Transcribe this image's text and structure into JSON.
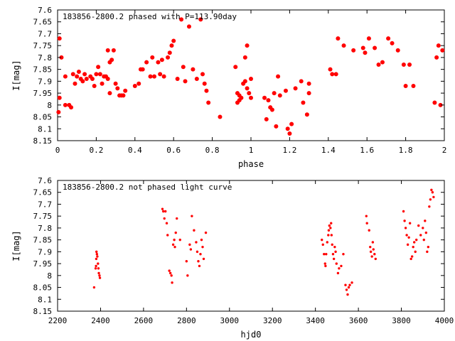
{
  "chart_data": [
    {
      "type": "scatter",
      "title": "183856-2800.2 phased with P=113.90day",
      "xlabel": "phase",
      "ylabel": "I[mag]",
      "xlim": [
        0,
        2
      ],
      "ylim": [
        8.15,
        7.6
      ],
      "y_inverted": true,
      "grid": false,
      "marker": "filled-circle",
      "color": "#ff0000",
      "x_ticks": [
        "0",
        "0.2",
        "0.4",
        "0.6",
        "0.8",
        "1",
        "1.2",
        "1.4",
        "1.6",
        "1.8",
        "2"
      ],
      "y_ticks": [
        "7.6",
        "7.65",
        "7.7",
        "7.75",
        "7.8",
        "7.85",
        "7.9",
        "7.95",
        "8",
        "8.05",
        "8.1",
        "8.15"
      ],
      "points": [
        [
          0.01,
          7.72
        ],
        [
          0.02,
          7.8
        ],
        [
          0.01,
          7.97
        ],
        [
          0.005,
          8.03
        ],
        [
          0.04,
          7.88
        ],
        [
          0.04,
          8.0
        ],
        [
          0.06,
          8.0
        ],
        [
          0.07,
          8.01
        ],
        [
          0.08,
          7.87
        ],
        [
          0.09,
          7.91
        ],
        [
          0.1,
          7.88
        ],
        [
          0.11,
          7.86
        ],
        [
          0.12,
          7.89
        ],
        [
          0.13,
          7.9
        ],
        [
          0.14,
          7.87
        ],
        [
          0.15,
          7.89
        ],
        [
          0.17,
          7.88
        ],
        [
          0.18,
          7.89
        ],
        [
          0.19,
          7.92
        ],
        [
          0.2,
          7.87
        ],
        [
          0.21,
          7.84
        ],
        [
          0.22,
          7.87
        ],
        [
          0.23,
          7.91
        ],
        [
          0.24,
          7.88
        ],
        [
          0.25,
          7.88
        ],
        [
          0.26,
          7.77
        ],
        [
          0.26,
          7.89
        ],
        [
          0.27,
          7.82
        ],
        [
          0.27,
          7.95
        ],
        [
          0.28,
          7.81
        ],
        [
          0.29,
          7.77
        ],
        [
          0.3,
          7.91
        ],
        [
          0.31,
          7.93
        ],
        [
          0.32,
          7.96
        ],
        [
          0.33,
          7.96
        ],
        [
          0.34,
          7.96
        ],
        [
          0.35,
          7.94
        ],
        [
          0.4,
          7.92
        ],
        [
          0.42,
          7.91
        ],
        [
          0.43,
          7.85
        ],
        [
          0.44,
          7.85
        ],
        [
          0.46,
          7.82
        ],
        [
          0.48,
          7.88
        ],
        [
          0.49,
          7.8
        ],
        [
          0.5,
          7.88
        ],
        [
          0.52,
          7.82
        ],
        [
          0.53,
          7.87
        ],
        [
          0.54,
          7.81
        ],
        [
          0.55,
          7.88
        ],
        [
          0.57,
          7.8
        ],
        [
          0.58,
          7.78
        ],
        [
          0.59,
          7.75
        ],
        [
          0.6,
          7.73
        ],
        [
          0.62,
          7.89
        ],
        [
          0.64,
          7.64
        ],
        [
          0.65,
          7.84
        ],
        [
          0.66,
          7.9
        ],
        [
          0.68,
          7.67
        ],
        [
          0.7,
          7.85
        ],
        [
          0.72,
          7.89
        ],
        [
          0.74,
          7.64
        ],
        [
          0.75,
          7.87
        ],
        [
          0.76,
          7.91
        ],
        [
          0.77,
          7.94
        ],
        [
          0.78,
          7.99
        ],
        [
          0.84,
          8.05
        ],
        [
          0.92,
          7.84
        ],
        [
          0.93,
          7.95
        ],
        [
          0.93,
          7.99
        ],
        [
          0.94,
          7.96
        ],
        [
          0.94,
          7.98
        ],
        [
          0.95,
          7.97
        ],
        [
          0.96,
          7.91
        ],
        [
          0.97,
          7.8
        ],
        [
          0.97,
          7.9
        ],
        [
          0.98,
          7.75
        ],
        [
          0.98,
          7.93
        ],
        [
          0.99,
          7.95
        ],
        [
          1.0,
          7.97
        ],
        [
          1.0,
          7.89
        ],
        [
          1.07,
          7.97
        ],
        [
          1.08,
          8.06
        ],
        [
          1.09,
          7.98
        ],
        [
          1.1,
          8.01
        ],
        [
          1.11,
          8.02
        ],
        [
          1.12,
          7.95
        ],
        [
          1.13,
          8.09
        ],
        [
          1.14,
          7.88
        ],
        [
          1.15,
          7.96
        ],
        [
          1.18,
          7.94
        ],
        [
          1.19,
          8.1
        ],
        [
          1.2,
          8.12
        ],
        [
          1.21,
          8.08
        ],
        [
          1.23,
          7.93
        ],
        [
          1.26,
          7.9
        ],
        [
          1.27,
          7.99
        ],
        [
          1.29,
          8.04
        ],
        [
          1.3,
          7.95
        ],
        [
          1.3,
          7.91
        ],
        [
          1.41,
          7.85
        ],
        [
          1.42,
          7.87
        ],
        [
          1.44,
          7.87
        ],
        [
          1.45,
          7.72
        ],
        [
          1.48,
          7.75
        ],
        [
          1.53,
          7.77
        ],
        [
          1.58,
          7.76
        ],
        [
          1.59,
          7.78
        ],
        [
          1.61,
          7.72
        ],
        [
          1.64,
          7.76
        ],
        [
          1.66,
          7.83
        ],
        [
          1.68,
          7.82
        ],
        [
          1.71,
          7.72
        ],
        [
          1.73,
          7.74
        ],
        [
          1.76,
          7.77
        ],
        [
          1.79,
          7.83
        ],
        [
          1.8,
          7.92
        ],
        [
          1.82,
          7.83
        ],
        [
          1.84,
          7.92
        ],
        [
          1.95,
          7.99
        ],
        [
          1.96,
          7.8
        ],
        [
          1.97,
          7.75
        ],
        [
          1.98,
          8.0
        ],
        [
          1.99,
          7.77
        ]
      ]
    },
    {
      "type": "scatter",
      "title": "183856-2800.2 not phased light curve",
      "xlabel": "hjd0",
      "ylabel": "I[mag]",
      "xlim": [
        2200,
        4000
      ],
      "ylim": [
        8.15,
        7.6
      ],
      "y_inverted": true,
      "grid": false,
      "marker": "small-dot",
      "color": "#ff0000",
      "x_ticks": [
        "2200",
        "2400",
        "2600",
        "2800",
        "3000",
        "3200",
        "3400",
        "3600",
        "3800",
        "4000"
      ],
      "y_ticks": [
        "7.6",
        "7.65",
        "7.7",
        "7.75",
        "7.8",
        "7.85",
        "7.9",
        "7.95",
        "8",
        "8.05",
        "8.1",
        "8.15"
      ],
      "points": [
        [
          2370,
          8.05
        ],
        [
          2377,
          7.97
        ],
        [
          2379,
          7.96
        ],
        [
          2380,
          7.93
        ],
        [
          2381,
          7.9
        ],
        [
          2383,
          7.91
        ],
        [
          2385,
          7.92
        ],
        [
          2388,
          7.95
        ],
        [
          2390,
          7.97
        ],
        [
          2392,
          7.99
        ],
        [
          2395,
          8.0
        ],
        [
          2397,
          8.01
        ],
        [
          2688,
          7.72
        ],
        [
          2692,
          7.73
        ],
        [
          2697,
          7.76
        ],
        [
          2702,
          7.73
        ],
        [
          2708,
          7.78
        ],
        [
          2712,
          7.83
        ],
        [
          2720,
          7.98
        ],
        [
          2725,
          7.99
        ],
        [
          2730,
          8.0
        ],
        [
          2733,
          8.03
        ],
        [
          2738,
          7.87
        ],
        [
          2743,
          7.85
        ],
        [
          2746,
          7.88
        ],
        [
          2750,
          7.82
        ],
        [
          2755,
          7.76
        ],
        [
          2770,
          7.85
        ],
        [
          2800,
          7.94
        ],
        [
          2805,
          8.0
        ],
        [
          2815,
          7.87
        ],
        [
          2820,
          7.89
        ],
        [
          2825,
          7.75
        ],
        [
          2835,
          7.81
        ],
        [
          2845,
          7.86
        ],
        [
          2850,
          7.9
        ],
        [
          2855,
          7.94
        ],
        [
          2860,
          7.96
        ],
        [
          2865,
          7.91
        ],
        [
          2870,
          7.85
        ],
        [
          2875,
          7.88
        ],
        [
          2880,
          7.93
        ],
        [
          2890,
          7.82
        ],
        [
          3430,
          7.85
        ],
        [
          3435,
          7.87
        ],
        [
          3440,
          7.91
        ],
        [
          3445,
          7.95
        ],
        [
          3447,
          7.96
        ],
        [
          3450,
          7.91
        ],
        [
          3455,
          7.86
        ],
        [
          3460,
          7.83
        ],
        [
          3462,
          7.81
        ],
        [
          3465,
          7.79
        ],
        [
          3470,
          7.8
        ],
        [
          3473,
          7.78
        ],
        [
          3475,
          7.83
        ],
        [
          3478,
          7.87
        ],
        [
          3482,
          7.91
        ],
        [
          3486,
          7.93
        ],
        [
          3490,
          7.88
        ],
        [
          3494,
          7.9
        ],
        [
          3498,
          7.95
        ],
        [
          3505,
          7.99
        ],
        [
          3510,
          7.97
        ],
        [
          3520,
          7.96
        ],
        [
          3530,
          7.91
        ],
        [
          3540,
          8.04
        ],
        [
          3545,
          8.06
        ],
        [
          3550,
          8.08
        ],
        [
          3555,
          8.05
        ],
        [
          3560,
          8.04
        ],
        [
          3570,
          8.03
        ],
        [
          3637,
          7.75
        ],
        [
          3640,
          7.78
        ],
        [
          3650,
          7.81
        ],
        [
          3655,
          7.88
        ],
        [
          3658,
          7.9
        ],
        [
          3663,
          7.92
        ],
        [
          3667,
          7.86
        ],
        [
          3670,
          7.89
        ],
        [
          3675,
          7.91
        ],
        [
          3680,
          7.93
        ],
        [
          3810,
          7.73
        ],
        [
          3815,
          7.77
        ],
        [
          3820,
          7.8
        ],
        [
          3825,
          7.83
        ],
        [
          3830,
          7.87
        ],
        [
          3835,
          7.84
        ],
        [
          3840,
          7.78
        ],
        [
          3845,
          7.93
        ],
        [
          3850,
          7.92
        ],
        [
          3855,
          7.88
        ],
        [
          3860,
          7.86
        ],
        [
          3865,
          7.9
        ],
        [
          3870,
          7.85
        ],
        [
          3880,
          7.79
        ],
        [
          3890,
          7.83
        ],
        [
          3900,
          7.8
        ],
        [
          3905,
          7.85
        ],
        [
          3910,
          7.77
        ],
        [
          3915,
          7.82
        ],
        [
          3920,
          7.9
        ],
        [
          3925,
          7.88
        ],
        [
          3930,
          7.71
        ],
        [
          3935,
          7.68
        ],
        [
          3940,
          7.64
        ],
        [
          3945,
          7.65
        ],
        [
          3950,
          7.67
        ]
      ]
    }
  ]
}
